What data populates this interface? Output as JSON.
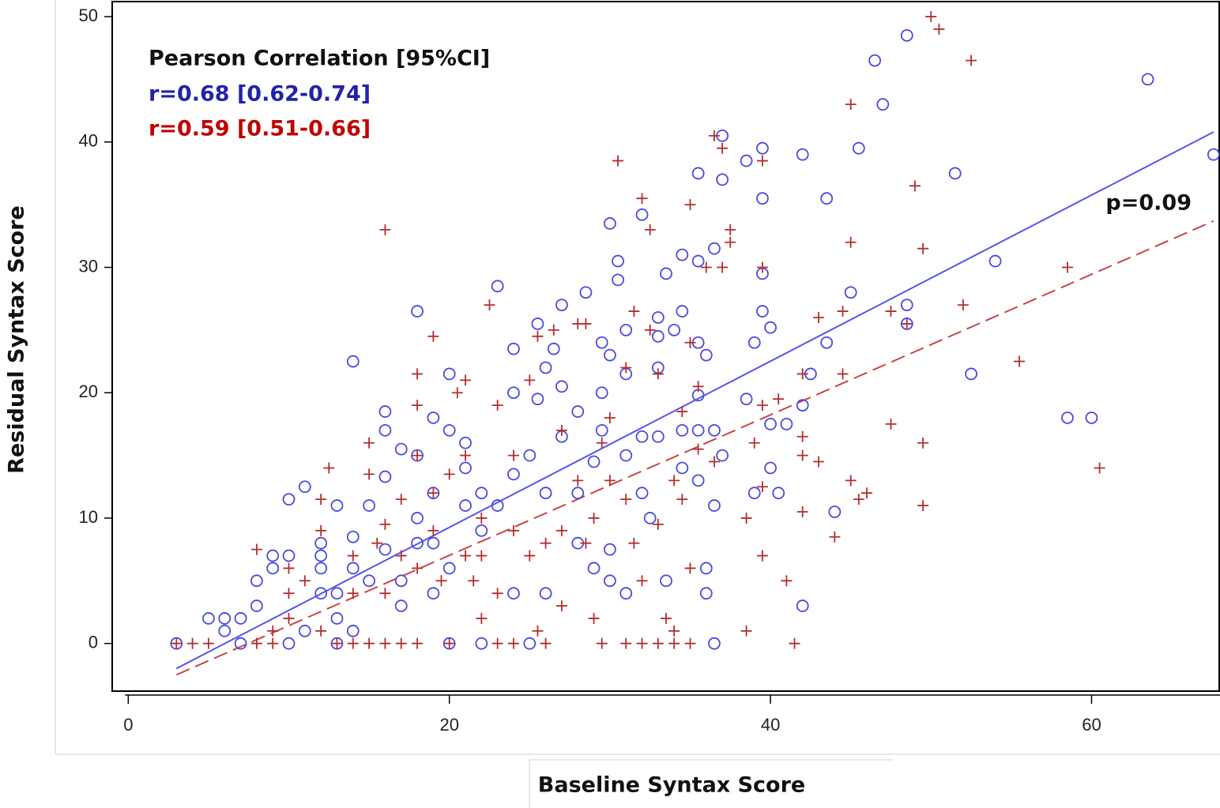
{
  "chart_data": {
    "type": "scatter",
    "x_label": "Baseline Syntax Score",
    "y_label": "Residual Syntax Score",
    "annotations": [
      {
        "text": "Pearson Correlation [95%CI]",
        "color": "#111111"
      },
      {
        "text": "r=0.68 [0.62-0.74]",
        "color": "#2222aa"
      },
      {
        "text": "r=0.59 [0.51-0.66]",
        "color": "#c00000"
      },
      {
        "text": "p=0.09",
        "color": "#111111"
      }
    ],
    "xlim": [
      -1,
      68
    ],
    "ylim": [
      -3.8,
      51.2
    ],
    "xticks": [
      0,
      20,
      40,
      60
    ],
    "yticks": [
      0,
      10,
      20,
      30,
      40,
      50
    ],
    "grid": false,
    "series": [
      {
        "marker": "circle",
        "color": "#4a4ae0",
        "x": [
          3,
          5,
          6,
          6,
          7,
          7,
          8,
          8,
          9,
          9,
          10,
          10,
          10,
          11,
          11,
          12,
          12,
          12,
          12,
          13,
          13,
          13,
          13,
          14,
          14,
          14,
          14,
          15,
          15,
          16,
          16,
          16,
          16,
          17,
          17,
          17,
          18,
          18,
          18,
          18,
          19,
          19,
          19,
          19,
          20,
          20,
          20,
          20,
          21,
          21,
          21,
          22,
          22,
          22,
          23,
          23,
          24,
          24,
          24,
          24,
          25,
          25,
          25.5,
          25.5,
          26,
          26,
          26,
          26.5,
          27,
          27,
          27,
          28,
          28,
          28,
          28.5,
          29,
          29,
          29.5,
          29.5,
          29.5,
          30,
          30,
          30,
          30,
          30.5,
          30.5,
          31,
          31,
          31,
          31,
          32,
          32,
          32,
          32.5,
          33,
          33,
          33,
          33,
          33.5,
          33.5,
          34,
          34.5,
          34.5,
          34.5,
          34.5,
          35.5,
          35.5,
          35.5,
          35.5,
          35.5,
          35.5,
          36,
          36,
          36,
          36.5,
          36.5,
          36.5,
          37,
          37,
          37,
          36.5,
          38.5,
          38.5,
          39,
          39,
          39.5,
          39.5,
          39.5,
          39.5,
          40,
          40,
          40,
          40.5,
          41,
          42,
          42,
          42,
          42.5,
          43.5,
          43.5,
          44,
          45,
          45.5,
          46.5,
          47,
          48.5,
          48.5,
          48.5,
          51.5,
          52.5,
          54,
          58.5,
          60,
          63.5,
          67.6
        ],
        "values": [
          0,
          2,
          2,
          1,
          0,
          2,
          5,
          3,
          7,
          6,
          11.5,
          7,
          0,
          12.5,
          1,
          8,
          7,
          6,
          4,
          11,
          4,
          2,
          0,
          22.5,
          8.5,
          6,
          1,
          11,
          5,
          18.5,
          17,
          13.3,
          7.5,
          15.5,
          5,
          3,
          26.5,
          15,
          10,
          8,
          18,
          12,
          8,
          4,
          21.5,
          17,
          6,
          0,
          16,
          11,
          14,
          12,
          9,
          0,
          28.5,
          11,
          23.5,
          20,
          13.5,
          4,
          15,
          0,
          25.5,
          19.5,
          22,
          12,
          4,
          23.5,
          27,
          20.5,
          16.5,
          18.5,
          12,
          8,
          28,
          14.5,
          6,
          24,
          20,
          17,
          33.5,
          23,
          7.5,
          5,
          30.5,
          29,
          25,
          21.5,
          15,
          4,
          34.2,
          16.5,
          12,
          10,
          26,
          24.5,
          22,
          16.5,
          5,
          29.5,
          25,
          31,
          26.5,
          17,
          14,
          37.5,
          30.5,
          24,
          19.8,
          17,
          13,
          23,
          6,
          4,
          31.5,
          17,
          11,
          40.5,
          37,
          15,
          0,
          38.5,
          19.5,
          24,
          12,
          39.5,
          35.5,
          29.5,
          26.5,
          25.2,
          17.5,
          14,
          12,
          17.5,
          39,
          19,
          3,
          21.5,
          35.5,
          24,
          10.5,
          28,
          39.5,
          46.5,
          43,
          48.5,
          27,
          25.5,
          37.5,
          21.5,
          30.5,
          18,
          18,
          45,
          39
        ]
      },
      {
        "marker": "plus",
        "color": "#b03030",
        "x": [
          3,
          4,
          5,
          8,
          8,
          9,
          9,
          10,
          10,
          10,
          11,
          12,
          12,
          12,
          12.5,
          13,
          14,
          14,
          14,
          15,
          15,
          15,
          15.5,
          16,
          16,
          16,
          16,
          17,
          17,
          17,
          18,
          18,
          18,
          18,
          18,
          19,
          19,
          19,
          19.5,
          20,
          20,
          20.5,
          21,
          21,
          21,
          21.5,
          22,
          22,
          22,
          22.5,
          23,
          23,
          23,
          24,
          24,
          24,
          25,
          25,
          25.5,
          25.5,
          26,
          26,
          26.5,
          27,
          27,
          27,
          28,
          28,
          28.5,
          28.5,
          29,
          29,
          29.5,
          29.5,
          30,
          30,
          30.5,
          31,
          31,
          31,
          31.5,
          31.5,
          32,
          32,
          32,
          32.5,
          32.5,
          33,
          33,
          33,
          33.5,
          34,
          34,
          34,
          34.5,
          34.5,
          35,
          35,
          35,
          35,
          35.5,
          35.5,
          36,
          36.5,
          36.5,
          37,
          37,
          37.5,
          37.5,
          38.5,
          38.5,
          39,
          39.5,
          39.5,
          39.5,
          39.5,
          39.5,
          40.5,
          41,
          41.5,
          42,
          42,
          42,
          42,
          43,
          43,
          44,
          44.5,
          44.5,
          45,
          45,
          45,
          45.5,
          46,
          47.5,
          47.5,
          48.5,
          49,
          49.5,
          49.5,
          49.5,
          50,
          50.5,
          52,
          52.5,
          55.5,
          58.5,
          60.5
        ],
        "values": [
          0,
          0,
          0,
          7.5,
          0,
          1,
          0,
          6,
          4,
          2,
          5,
          11.5,
          9,
          1,
          14,
          0,
          7,
          4,
          0,
          16,
          13.5,
          0,
          8,
          33,
          9.5,
          4,
          0,
          11.5,
          7,
          0,
          21.5,
          19,
          15,
          6,
          0,
          24.5,
          12,
          9,
          5,
          13.5,
          0,
          20,
          21,
          15,
          7,
          5,
          10,
          7,
          2,
          27,
          19,
          4,
          0,
          15,
          9,
          0,
          21,
          7,
          24.5,
          1,
          8,
          0,
          25,
          17,
          9,
          3,
          25.5,
          13,
          25.5,
          8,
          10,
          2,
          16,
          0,
          18,
          13,
          38.5,
          22,
          11.5,
          0,
          26.5,
          8,
          35.5,
          5,
          0,
          33,
          25,
          21.5,
          9.5,
          0,
          2,
          13,
          1,
          0,
          18.5,
          11.5,
          35,
          24,
          6,
          0,
          20.5,
          15.5,
          30,
          40.5,
          14.5,
          39.5,
          30,
          33,
          32,
          10,
          1,
          16,
          38.5,
          30,
          19,
          12.5,
          7,
          19.5,
          5,
          0,
          21.5,
          16.5,
          15,
          10.5,
          26,
          14.5,
          8.5,
          26.5,
          21.5,
          43,
          32,
          13,
          11.5,
          12,
          26.5,
          17.5,
          25.5,
          36.5,
          31.5,
          16,
          11,
          50,
          49,
          27,
          46.5,
          22.5,
          30,
          14
        ]
      }
    ],
    "fits": [
      {
        "color": "#5555ee",
        "dash": false,
        "x": [
          3,
          67.6
        ],
        "values": [
          -2,
          40.8
        ]
      },
      {
        "color": "#cc4444",
        "dash": true,
        "x": [
          3,
          67.6
        ],
        "values": [
          -2.5,
          33.7
        ]
      }
    ]
  }
}
